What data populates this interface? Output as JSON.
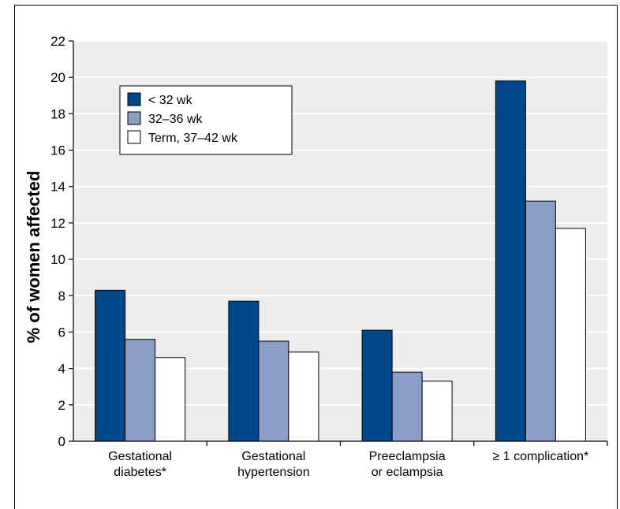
{
  "chart_data": {
    "type": "bar",
    "title": "",
    "xlabel": "",
    "ylabel": "% of women affected",
    "ylim": [
      0,
      22
    ],
    "yticks": [
      "0",
      "2",
      "4",
      "6",
      "8",
      "10",
      "12",
      "14",
      "16",
      "18",
      "20",
      "22"
    ],
    "grid": true,
    "legend_position": "top-left",
    "categories": [
      [
        "Gestational",
        "diabetes*"
      ],
      [
        "Gestational",
        "hypertension"
      ],
      [
        "Preeclampsia",
        "or eclampsia"
      ],
      [
        "≥ 1 complication*"
      ]
    ],
    "series": [
      {
        "name": "< 32 wk",
        "color": "#00488a",
        "values": [
          8.3,
          7.7,
          6.1,
          19.8
        ]
      },
      {
        "name": "32–36 wk",
        "color": "#8b9ec6",
        "values": [
          5.6,
          5.5,
          3.8,
          13.2
        ]
      },
      {
        "name": "Term, 37–42 wk",
        "color": "#ffffff",
        "values": [
          4.6,
          4.9,
          3.3,
          11.7
        ]
      }
    ],
    "colors": {
      "plot_background": "#ececed",
      "gridline": "#ffffff"
    }
  }
}
